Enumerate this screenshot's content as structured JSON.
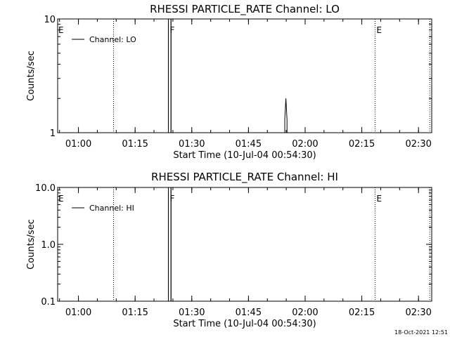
{
  "footer": {
    "timestamp": "18-Oct-2021 12:51"
  },
  "chart_data": [
    {
      "type": "line",
      "title": "RHESSI PARTICLE_RATE Channel: LO",
      "xlabel": "Start Time (10-Jul-04 00:54:30)",
      "ylabel": "Counts/sec",
      "yscale": "log",
      "ylim": [
        1,
        10
      ],
      "xlim_minutes": [
        0,
        99
      ],
      "ytick_labels": [
        {
          "value": 10,
          "label": "10"
        },
        {
          "value": 1,
          "label": "1"
        }
      ],
      "xtick_labels": [
        {
          "t": 5.5,
          "label": "01:00"
        },
        {
          "t": 20.5,
          "label": "01:15"
        },
        {
          "t": 35.5,
          "label": "01:30"
        },
        {
          "t": 50.5,
          "label": "01:45"
        },
        {
          "t": 65.5,
          "label": "02:00"
        },
        {
          "t": 80.5,
          "label": "02:15"
        },
        {
          "t": 95.5,
          "label": "02:30"
        }
      ],
      "legend": {
        "label": "Channel: LO",
        "placement": "top-left"
      },
      "series": [
        {
          "name": "Channel: LO",
          "x": [
            0,
            29.3,
            29.3,
            30.0,
            30.0,
            60.1,
            60.1,
            60.4,
            60.7,
            60.7,
            99
          ],
          "y": [
            1,
            1,
            10,
            10,
            1,
            1,
            1.3,
            2.0,
            1.3,
            1,
            1
          ]
        }
      ],
      "vlines": [
        {
          "t": 14.8,
          "style": "dotted",
          "label": ""
        },
        {
          "t": 29.3,
          "style": "solid",
          "label": "F"
        },
        {
          "t": 30.0,
          "style": "solid",
          "label": ""
        },
        {
          "t": 84.0,
          "style": "dotted",
          "label": "E"
        },
        {
          "t": 98.5,
          "style": "dotted",
          "label": ""
        }
      ],
      "corner_label": "E"
    },
    {
      "type": "line",
      "title": "RHESSI PARTICLE_RATE Channel: HI",
      "xlabel": "Start Time (10-Jul-04 00:54:30)",
      "ylabel": "Counts/sec",
      "yscale": "log",
      "ylim": [
        0.1,
        10
      ],
      "xlim_minutes": [
        0,
        99
      ],
      "ytick_labels": [
        {
          "value": 10,
          "label": "10.0"
        },
        {
          "value": 1,
          "label": "1.0"
        },
        {
          "value": 0.1,
          "label": "0.1"
        }
      ],
      "xtick_labels": [
        {
          "t": 5.5,
          "label": "01:00"
        },
        {
          "t": 20.5,
          "label": "01:15"
        },
        {
          "t": 35.5,
          "label": "01:30"
        },
        {
          "t": 50.5,
          "label": "01:45"
        },
        {
          "t": 65.5,
          "label": "02:00"
        },
        {
          "t": 80.5,
          "label": "02:15"
        },
        {
          "t": 95.5,
          "label": "02:30"
        }
      ],
      "legend": {
        "label": "Channel: HI",
        "placement": "top-left"
      },
      "series": [
        {
          "name": "Channel: HI",
          "x": [
            0,
            29.3,
            29.3,
            30.0,
            30.0,
            99
          ],
          "y": [
            0.1,
            0.1,
            10,
            10,
            0.1,
            0.1
          ]
        }
      ],
      "vlines": [
        {
          "t": 14.8,
          "style": "dotted",
          "label": ""
        },
        {
          "t": 29.3,
          "style": "solid",
          "label": "F"
        },
        {
          "t": 30.0,
          "style": "solid",
          "label": ""
        },
        {
          "t": 84.0,
          "style": "dotted",
          "label": "E"
        },
        {
          "t": 98.5,
          "style": "dotted",
          "label": ""
        }
      ],
      "corner_label": "E"
    }
  ]
}
